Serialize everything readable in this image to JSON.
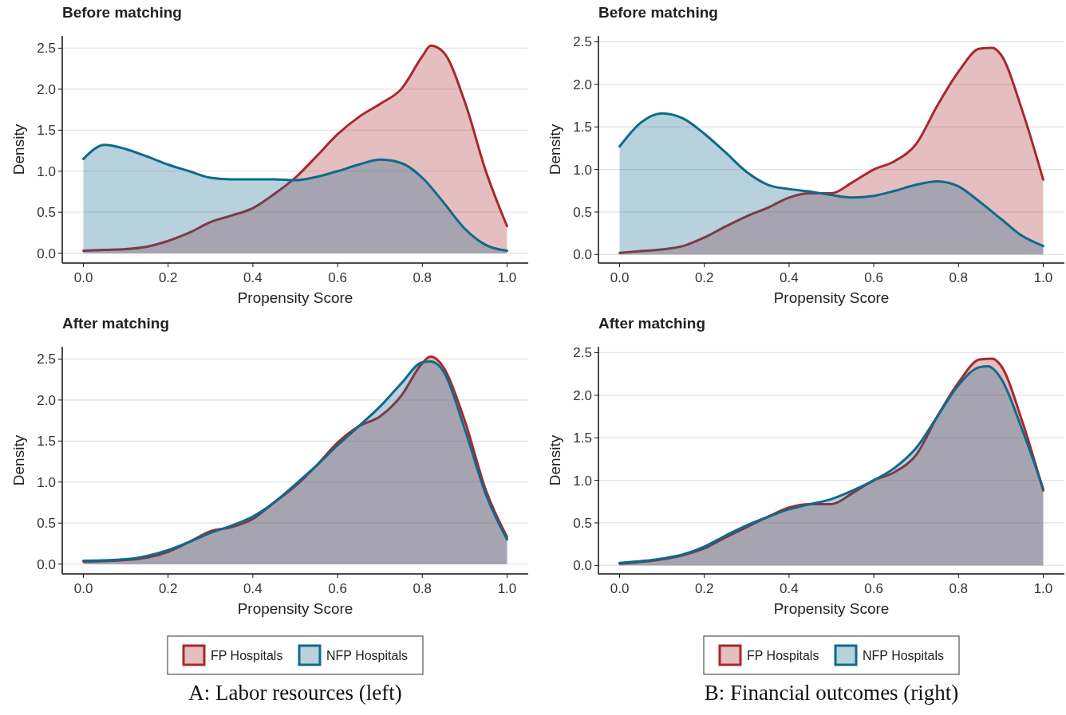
{
  "chart_data": [
    {
      "type": "area",
      "title": "Before matching",
      "xlabel": "Propensity Score",
      "ylabel": "Density",
      "xlim": [
        -0.05,
        1.05
      ],
      "ylim": [
        -0.12,
        2.65
      ],
      "xticks": [
        {
          "value": 0,
          "label": "0.0"
        },
        {
          "value": 0.2,
          "label": "0.2"
        },
        {
          "value": 0.4,
          "label": "0.4"
        },
        {
          "value": 0.6,
          "label": "0.6"
        },
        {
          "value": 0.8,
          "label": "0.8"
        },
        {
          "value": 1,
          "label": "1.0"
        }
      ],
      "yticks": [
        {
          "value": 0,
          "label": "0.0"
        },
        {
          "value": 0.5,
          "label": "0.5"
        },
        {
          "value": 1,
          "label": "1.0"
        },
        {
          "value": 1.5,
          "label": "1.5"
        },
        {
          "value": 2,
          "label": "2.0"
        },
        {
          "value": 2.5,
          "label": "2.5"
        }
      ],
      "grid": "y",
      "legend": false,
      "series": [
        {
          "color": "#a8282d",
          "x": [
            0,
            0.05,
            0.1,
            0.15,
            0.2,
            0.25,
            0.3,
            0.35,
            0.4,
            0.45,
            0.5,
            0.55,
            0.6,
            0.65,
            0.7,
            0.75,
            0.8,
            0.82,
            0.85,
            0.9,
            0.95,
            1
          ],
          "values": [
            0.03,
            0.04,
            0.05,
            0.08,
            0.15,
            0.25,
            0.38,
            0.46,
            0.55,
            0.72,
            0.92,
            1.18,
            1.45,
            1.66,
            1.82,
            2.0,
            2.4,
            2.53,
            2.45,
            1.85,
            1.0,
            0.33
          ]
        },
        {
          "color": "#0f6a8b",
          "x": [
            0,
            0.05,
            0.1,
            0.15,
            0.2,
            0.25,
            0.3,
            0.35,
            0.4,
            0.45,
            0.5,
            0.55,
            0.6,
            0.65,
            0.7,
            0.75,
            0.8,
            0.85,
            0.9,
            0.95,
            1
          ],
          "values": [
            1.15,
            1.32,
            1.27,
            1.18,
            1.08,
            1.0,
            0.92,
            0.9,
            0.9,
            0.9,
            0.89,
            0.93,
            1.0,
            1.08,
            1.14,
            1.1,
            0.92,
            0.62,
            0.3,
            0.1,
            0.03
          ]
        }
      ]
    },
    {
      "type": "area",
      "title": "Before matching",
      "xlabel": "Propensity Score",
      "ylabel": "Density",
      "xlim": [
        -0.05,
        1.05
      ],
      "ylim": [
        -0.1,
        2.57
      ],
      "xticks": [
        {
          "value": 0,
          "label": "0.0"
        },
        {
          "value": 0.2,
          "label": "0.2"
        },
        {
          "value": 0.4,
          "label": "0.4"
        },
        {
          "value": 0.6,
          "label": "0.6"
        },
        {
          "value": 0.8,
          "label": "0.8"
        },
        {
          "value": 1,
          "label": "1.0"
        }
      ],
      "yticks": [
        {
          "value": 0,
          "label": "0.0"
        },
        {
          "value": 0.5,
          "label": "0.5"
        },
        {
          "value": 1,
          "label": "1.0"
        },
        {
          "value": 1.5,
          "label": "1.5"
        },
        {
          "value": 2,
          "label": "2.0"
        },
        {
          "value": 2.5,
          "label": "2.5"
        }
      ],
      "grid": "y",
      "legend": false,
      "series": [
        {
          "color": "#a8282d",
          "x": [
            0,
            0.05,
            0.1,
            0.15,
            0.2,
            0.25,
            0.3,
            0.35,
            0.4,
            0.45,
            0.5,
            0.55,
            0.6,
            0.65,
            0.7,
            0.75,
            0.8,
            0.85,
            0.88,
            0.9,
            0.95,
            1
          ],
          "values": [
            0.02,
            0.04,
            0.06,
            0.1,
            0.2,
            0.33,
            0.45,
            0.55,
            0.67,
            0.72,
            0.72,
            0.85,
            1.0,
            1.1,
            1.3,
            1.75,
            2.15,
            2.42,
            2.43,
            2.35,
            1.7,
            0.88
          ]
        },
        {
          "color": "#0f6a8b",
          "x": [
            0,
            0.05,
            0.1,
            0.15,
            0.2,
            0.25,
            0.3,
            0.35,
            0.4,
            0.45,
            0.5,
            0.55,
            0.6,
            0.65,
            0.7,
            0.75,
            0.8,
            0.85,
            0.9,
            0.95,
            1
          ],
          "values": [
            1.27,
            1.55,
            1.66,
            1.6,
            1.42,
            1.2,
            0.97,
            0.82,
            0.77,
            0.74,
            0.7,
            0.67,
            0.69,
            0.75,
            0.82,
            0.86,
            0.8,
            0.62,
            0.42,
            0.22,
            0.1
          ]
        }
      ]
    },
    {
      "type": "area",
      "title": "After matching",
      "xlabel": "Propensity Score",
      "ylabel": "Density",
      "xlim": [
        -0.05,
        1.05
      ],
      "ylim": [
        -0.12,
        2.65
      ],
      "xticks": [
        {
          "value": 0,
          "label": "0.0"
        },
        {
          "value": 0.2,
          "label": "0.2"
        },
        {
          "value": 0.4,
          "label": "0.4"
        },
        {
          "value": 0.6,
          "label": "0.6"
        },
        {
          "value": 0.8,
          "label": "0.8"
        },
        {
          "value": 1,
          "label": "1.0"
        }
      ],
      "yticks": [
        {
          "value": 0,
          "label": "0.0"
        },
        {
          "value": 0.5,
          "label": "0.5"
        },
        {
          "value": 1,
          "label": "1.0"
        },
        {
          "value": 1.5,
          "label": "1.5"
        },
        {
          "value": 2,
          "label": "2.0"
        },
        {
          "value": 2.5,
          "label": "2.5"
        }
      ],
      "grid": "y",
      "legend": "bottom",
      "annotations": [
        "A: Labor resources (left)"
      ],
      "series": [
        {
          "name": "FP Hospitals",
          "color": "#a8282d",
          "x": [
            0,
            0.1,
            0.15,
            0.2,
            0.25,
            0.3,
            0.35,
            0.4,
            0.45,
            0.5,
            0.55,
            0.6,
            0.65,
            0.7,
            0.75,
            0.8,
            0.82,
            0.85,
            0.9,
            0.95,
            1
          ],
          "values": [
            0.03,
            0.05,
            0.08,
            0.15,
            0.27,
            0.4,
            0.45,
            0.55,
            0.75,
            0.95,
            1.2,
            1.48,
            1.68,
            1.8,
            2.05,
            2.45,
            2.53,
            2.4,
            1.75,
            0.9,
            0.33
          ]
        },
        {
          "name": "NFP Hospitals",
          "color": "#0f6a8b",
          "x": [
            0,
            0.1,
            0.15,
            0.2,
            0.25,
            0.3,
            0.35,
            0.4,
            0.45,
            0.5,
            0.55,
            0.6,
            0.65,
            0.7,
            0.75,
            0.8,
            0.82,
            0.85,
            0.9,
            0.95,
            1
          ],
          "values": [
            0.04,
            0.06,
            0.1,
            0.17,
            0.27,
            0.38,
            0.47,
            0.58,
            0.75,
            0.97,
            1.2,
            1.45,
            1.68,
            1.92,
            2.2,
            2.46,
            2.47,
            2.35,
            1.65,
            0.85,
            0.3
          ]
        }
      ]
    },
    {
      "type": "area",
      "title": "After matching",
      "xlabel": "Propensity Score",
      "ylabel": "Density",
      "xlim": [
        -0.05,
        1.05
      ],
      "ylim": [
        -0.1,
        2.57
      ],
      "xticks": [
        {
          "value": 0,
          "label": "0.0"
        },
        {
          "value": 0.2,
          "label": "0.2"
        },
        {
          "value": 0.4,
          "label": "0.4"
        },
        {
          "value": 0.6,
          "label": "0.6"
        },
        {
          "value": 0.8,
          "label": "0.8"
        },
        {
          "value": 1,
          "label": "1.0"
        }
      ],
      "yticks": [
        {
          "value": 0,
          "label": "0.0"
        },
        {
          "value": 0.5,
          "label": "0.5"
        },
        {
          "value": 1,
          "label": "1.0"
        },
        {
          "value": 1.5,
          "label": "1.5"
        },
        {
          "value": 2,
          "label": "2.0"
        },
        {
          "value": 2.5,
          "label": "2.5"
        }
      ],
      "grid": "y",
      "legend": "bottom",
      "annotations": [
        "B: Financial outcomes (right)"
      ],
      "series": [
        {
          "name": "FP Hospitals",
          "color": "#a8282d",
          "x": [
            0,
            0.1,
            0.15,
            0.2,
            0.25,
            0.3,
            0.35,
            0.4,
            0.45,
            0.5,
            0.55,
            0.6,
            0.65,
            0.7,
            0.75,
            0.8,
            0.85,
            0.88,
            0.9,
            0.95,
            1
          ],
          "values": [
            0.02,
            0.07,
            0.12,
            0.2,
            0.33,
            0.45,
            0.57,
            0.68,
            0.72,
            0.72,
            0.85,
            1.0,
            1.1,
            1.3,
            1.75,
            2.15,
            2.42,
            2.43,
            2.35,
            1.7,
            0.88
          ]
        },
        {
          "name": "NFP Hospitals",
          "color": "#0f6a8b",
          "x": [
            0,
            0.1,
            0.15,
            0.2,
            0.25,
            0.3,
            0.35,
            0.4,
            0.45,
            0.5,
            0.55,
            0.6,
            0.65,
            0.7,
            0.75,
            0.8,
            0.85,
            0.87,
            0.9,
            0.95,
            1
          ],
          "values": [
            0.03,
            0.08,
            0.13,
            0.22,
            0.35,
            0.47,
            0.57,
            0.66,
            0.72,
            0.78,
            0.88,
            1.0,
            1.15,
            1.38,
            1.75,
            2.12,
            2.33,
            2.34,
            2.2,
            1.6,
            0.9
          ]
        }
      ]
    }
  ]
}
